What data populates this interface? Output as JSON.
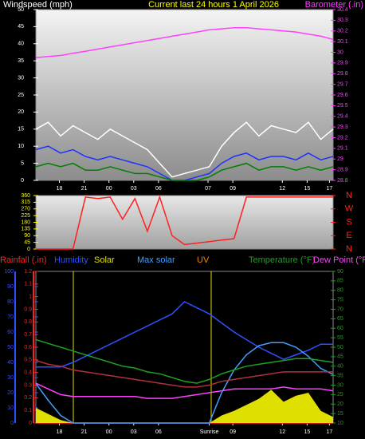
{
  "chart_data": [
    {
      "type": "line",
      "title": "Current last 24 hours 1 April 2026",
      "ylabel": "Windspeed (mph)",
      "y2label": "Barometer (.in)",
      "x": [
        0,
        1,
        2,
        3,
        4,
        5,
        6,
        7,
        8,
        9,
        10,
        11,
        12,
        13,
        14,
        15,
        16,
        17,
        18,
        19,
        20,
        21,
        22,
        23,
        24
      ],
      "xlim": [
        0,
        24
      ],
      "xticks": [
        {
          "value": 1.9,
          "label": "18"
        },
        {
          "value": 3.9,
          "label": "21"
        },
        {
          "value": 5.9,
          "label": "00"
        },
        {
          "value": 7.9,
          "label": "03"
        },
        {
          "value": 9.9,
          "label": "06"
        },
        {
          "value": 13.9,
          "label": "07"
        },
        {
          "value": 15.9,
          "label": "09"
        },
        {
          "value": 19.9,
          "label": "12"
        },
        {
          "value": 21.9,
          "label": "15"
        },
        {
          "value": 23.7,
          "label": "17"
        }
      ],
      "ylim": [
        0,
        50
      ],
      "yticks": [
        0,
        5,
        10,
        15,
        20,
        25,
        30,
        35,
        40,
        45,
        50
      ],
      "y2lim": [
        28.8,
        30.4
      ],
      "y2ticks": [
        28.8,
        28.9,
        29,
        29.1,
        29.2,
        29.3,
        29.4,
        29.5,
        29.6,
        29.7,
        29.8,
        29.9,
        30,
        30.1,
        30.2,
        30.3,
        30.4
      ],
      "series": [
        {
          "color": "#ffffff",
          "values": [
            15,
            17,
            13,
            16,
            14,
            12,
            15,
            13,
            11,
            9,
            5,
            1,
            2,
            3,
            4,
            10,
            14,
            17,
            13,
            16,
            15,
            14,
            17,
            12,
            15
          ]
        },
        {
          "color": "#2030ff",
          "values": [
            9,
            10,
            8,
            9,
            7,
            6,
            7,
            6,
            5,
            4,
            2,
            0,
            0,
            1,
            2,
            5,
            7,
            8,
            6,
            7,
            7,
            6,
            8,
            6,
            7
          ]
        },
        {
          "color": "#008000",
          "values": [
            4,
            5,
            4,
            5,
            3,
            3,
            4,
            3,
            2,
            2,
            1,
            0,
            0,
            0,
            1,
            3,
            4,
            5,
            3,
            4,
            4,
            3,
            4,
            3,
            4
          ]
        },
        {
          "color": "#ff40ff",
          "axis": "y2",
          "values": [
            29.95,
            29.96,
            29.97,
            29.99,
            30.01,
            30.03,
            30.05,
            30.07,
            30.09,
            30.11,
            30.13,
            30.15,
            30.17,
            30.19,
            30.21,
            30.22,
            30.23,
            30.23,
            30.22,
            30.21,
            30.2,
            30.19,
            30.17,
            30.15,
            30.12
          ]
        }
      ]
    },
    {
      "type": "line",
      "x": [
        0,
        1,
        2,
        3,
        4,
        5,
        6,
        7,
        8,
        9,
        10,
        11,
        12,
        13,
        14,
        15,
        16,
        17,
        18,
        19,
        20,
        21,
        22,
        23,
        24
      ],
      "xlim": [
        0,
        24
      ],
      "ylim": [
        0,
        360
      ],
      "yticks": [
        0,
        45,
        90,
        135,
        180,
        225,
        270,
        315,
        360
      ],
      "y2lim": [
        0,
        360
      ],
      "y2ticks": [
        {
          "value": 360,
          "label": "N"
        },
        {
          "value": 270,
          "label": "W"
        },
        {
          "value": 180,
          "label": "S"
        },
        {
          "value": 90,
          "label": "E"
        },
        {
          "value": 0,
          "label": "N"
        }
      ],
      "series": [
        {
          "color": "#ff2020",
          "values": [
            0,
            0,
            0,
            0,
            350,
            340,
            350,
            200,
            340,
            120,
            350,
            90,
            30,
            40,
            50,
            60,
            70,
            350,
            350,
            350,
            350,
            350,
            350,
            350,
            350
          ]
        }
      ]
    },
    {
      "type": "line",
      "uv_label": "UV",
      "x": [
        0,
        1,
        2,
        3,
        4,
        5,
        6,
        7,
        8,
        9,
        10,
        11,
        12,
        13,
        14,
        15,
        16,
        17,
        18,
        19,
        20,
        21,
        22,
        23,
        24
      ],
      "xlim": [
        0,
        24
      ],
      "xticks": [
        {
          "value": 1.9,
          "label": "18"
        },
        {
          "value": 3.9,
          "label": "21"
        },
        {
          "value": 5.9,
          "label": "00"
        },
        {
          "value": 7.9,
          "label": "03"
        },
        {
          "value": 9.9,
          "label": "06"
        },
        {
          "value": 14.0,
          "label": "Sunrise"
        },
        {
          "value": 15.9,
          "label": "09"
        },
        {
          "value": 19.9,
          "label": "12"
        },
        {
          "value": 21.9,
          "label": "15"
        },
        {
          "value": 23.7,
          "label": "17"
        }
      ],
      "ylim": [
        0,
        100
      ],
      "yticks": [
        0,
        10,
        20,
        30,
        40,
        50,
        60,
        70,
        80,
        90,
        100
      ],
      "y2lim": [
        10,
        90
      ],
      "y2ticks": [
        10,
        15,
        20,
        25,
        30,
        35,
        40,
        45,
        50,
        55,
        60,
        65,
        70,
        75,
        80,
        85,
        90
      ],
      "y3lim": [
        0,
        1.2
      ],
      "y3ticks": [
        0,
        0.1,
        0.2,
        0.3,
        0.4,
        0.5,
        0.6,
        0.7,
        0.8,
        0.9,
        1,
        1.1,
        1.2
      ],
      "series": [
        {
          "name": "Rainfall (.in)",
          "color": "#ff2020",
          "axis": "y3",
          "values": [
            0,
            0,
            0,
            0,
            0,
            0,
            0,
            0,
            0,
            0,
            0,
            0,
            0,
            0,
            0,
            0,
            0,
            0,
            0,
            0,
            0,
            0,
            0,
            0,
            0
          ]
        },
        {
          "name": "Humidity",
          "color": "#3050ff",
          "values": [
            37,
            37,
            37,
            40,
            44,
            48,
            52,
            56,
            60,
            64,
            68,
            72,
            80,
            76,
            72,
            66,
            60,
            55,
            50,
            46,
            42,
            45,
            48,
            52,
            52
          ]
        },
        {
          "name": "Solar",
          "color": "#e0e000",
          "kind": "area",
          "values": [
            10,
            6,
            2,
            0,
            0,
            0,
            0,
            0,
            0,
            0,
            0,
            0,
            0,
            0,
            0,
            5,
            8,
            12,
            16,
            22,
            14,
            18,
            20,
            8,
            4
          ]
        },
        {
          "name": "Max solar",
          "color": "#40a0ff",
          "values": [
            26,
            15,
            5,
            0,
            0,
            0,
            0,
            0,
            0,
            0,
            0,
            0,
            0,
            0,
            0,
            20,
            35,
            45,
            51,
            53,
            53,
            50,
            44,
            36,
            32
          ]
        },
        {
          "name": "Temperature (°F)",
          "color": "#20a020",
          "axis": "y2",
          "values": [
            54,
            52,
            50,
            48,
            46,
            44,
            42,
            40,
            39,
            37,
            36,
            34,
            32,
            31,
            33,
            36,
            38,
            40,
            41,
            42,
            43,
            44,
            44,
            43,
            42
          ]
        },
        {
          "name": "Dew Point (°F)",
          "color": "#ff40ff",
          "axis": "y2",
          "values": [
            31,
            28,
            25,
            24,
            24,
            24,
            24,
            24,
            24,
            23,
            23,
            23,
            24,
            25,
            26,
            27,
            28,
            28,
            28,
            28,
            29,
            28,
            28,
            28,
            27
          ]
        },
        {
          "color": "#b03040",
          "axis": "y2",
          "values": [
            43,
            41,
            40,
            38,
            37,
            36,
            35,
            34,
            33,
            32,
            31,
            30,
            29,
            29,
            30,
            32,
            33,
            34,
            35,
            36,
            37,
            37,
            37,
            37,
            37
          ]
        }
      ]
    }
  ]
}
